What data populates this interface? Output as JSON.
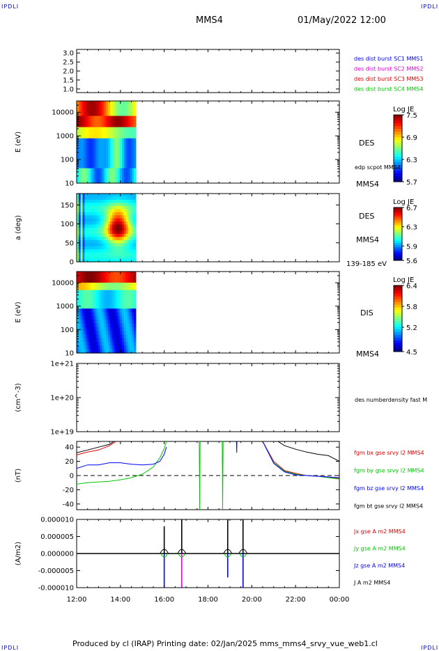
{
  "header": {
    "corner_label": "IPDLI",
    "title": "MMS4",
    "datetime": "01/May/2022 12:00"
  },
  "footer": {
    "text": "Produced by cl (IRAP)   Printing date: 02/Jan/2025   mms_mms4_srvy_vue_web1.cl"
  },
  "x_axis": {
    "ticks": [
      "12:00",
      "14:00",
      "16:00",
      "18:00",
      "20:00",
      "22:00",
      "00:00"
    ],
    "range_hours": [
      12,
      24
    ]
  },
  "chart_data": [
    {
      "type": "scatter",
      "panel": "burst-indicator",
      "ylim": [
        0.8,
        3.2
      ],
      "y_ticks": [
        "3.0",
        "2.5",
        "2.0",
        "1.5",
        "1.0"
      ],
      "legend": [
        {
          "text": "des dist burst SC1 MMS1",
          "color": "#0000ff"
        },
        {
          "text": "des dist burst SC2 MMS2",
          "color": "#e000e0"
        },
        {
          "text": "des dist burst SC3 MMS3",
          "color": "#e00000"
        },
        {
          "text": "des dist burst SC4 MMS4",
          "color": "#00c800"
        }
      ]
    },
    {
      "type": "heatmap",
      "panel": "des-energy-spectrogram",
      "ylabel": "E (eV)",
      "yscale": "log",
      "ylim": [
        10,
        30000
      ],
      "y_ticks": [
        "10000",
        "1000",
        "100",
        "10"
      ],
      "x_data_extent_hours": [
        12,
        14.7
      ],
      "right_labels": [
        "DES",
        "edp scpot MMS4",
        "MMS4"
      ],
      "colorbar": {
        "title": "Log JE",
        "ticks": [
          "7.5",
          "6.9",
          "6.3",
          "5.7"
        ],
        "range": [
          5.7,
          7.5
        ]
      }
    },
    {
      "type": "heatmap",
      "panel": "des-pitch-angle",
      "ylabel": "a (deg)",
      "ylim": [
        0,
        180
      ],
      "y_ticks": [
        "150",
        "100",
        "50",
        "0"
      ],
      "x_data_extent_hours": [
        12,
        14.7
      ],
      "right_labels": [
        "DES",
        "MMS4",
        "139-185 eV"
      ],
      "colorbar": {
        "title": "Log JE",
        "ticks": [
          "6.7",
          "6.3",
          "5.9",
          "5.6"
        ],
        "range": [
          5.6,
          6.7
        ]
      }
    },
    {
      "type": "heatmap",
      "panel": "dis-energy-spectrogram",
      "ylabel": "E (eV)",
      "yscale": "log",
      "ylim": [
        10,
        30000
      ],
      "y_ticks": [
        "10000",
        "1000",
        "100",
        "10"
      ],
      "x_data_extent_hours": [
        12,
        14.7
      ],
      "right_labels": [
        "DIS",
        "MMS4"
      ],
      "colorbar": {
        "title": "Log JE",
        "ticks": [
          "6.4",
          "5.8",
          "5.2",
          "4.5"
        ],
        "range": [
          4.5,
          6.4
        ]
      }
    },
    {
      "type": "line",
      "panel": "number-density",
      "ylabel": "(cm^-3)",
      "yscale": "log",
      "y_ticks": [
        "1e+21",
        "1e+20",
        "1e+19"
      ],
      "legend": [
        {
          "text": "des numberdensity fast M",
          "color": "#000000"
        }
      ],
      "series": []
    },
    {
      "type": "line",
      "panel": "magnetic-field",
      "ylabel": "(nT)",
      "ylim": [
        -48,
        48
      ],
      "y_ticks": [
        "40",
        "20",
        "0",
        "-20",
        "-40"
      ],
      "zero_line": "dashed",
      "legend": [
        {
          "text": "fgm bx gse srvy l2 MMS4",
          "color": "#e00000"
        },
        {
          "text": "fgm by gse srvy l2 MMS4",
          "color": "#00c800"
        },
        {
          "text": "fgm bz gse srvy l2 MMS4",
          "color": "#0000ff"
        },
        {
          "text": "fgm bt gse srvy l2 MMS4",
          "color": "#000000"
        }
      ],
      "series": [
        {
          "name": "fgm bx gse srvy l2 MMS4",
          "color": "#e00000",
          "segments": [
            {
              "x": [
                12.0,
                12.5,
                13.0,
                13.5,
                13.8
              ],
              "y": [
                29,
                33,
                36,
                42,
                48
              ]
            },
            {
              "x": [
                20.5,
                21.0,
                21.5,
                22.0,
                22.5,
                23.0,
                23.5,
                24.0
              ],
              "y": [
                48,
                20,
                7,
                3,
                0,
                -1,
                -2,
                -4
              ]
            }
          ]
        },
        {
          "name": "fgm by gse srvy l2 MMS4",
          "color": "#00c800",
          "segments": [
            {
              "x": [
                12.0,
                12.5,
                13.0,
                13.5,
                14.0,
                14.5,
                15.0,
                15.5,
                15.8,
                16.0,
                16.1
              ],
              "y": [
                -12,
                -10,
                -9,
                -8,
                -6,
                -3,
                2,
                12,
                25,
                38,
                48
              ]
            },
            {
              "x": [
                17.6,
                17.62,
                17.64
              ],
              "y": [
                48,
                -48,
                48
              ]
            },
            {
              "x": [
                18.65,
                18.67,
                18.69
              ],
              "y": [
                48,
                -48,
                48
              ]
            },
            {
              "x": [
                20.5,
                21.0,
                21.5,
                22.0,
                22.5,
                23.0,
                23.5,
                24.0
              ],
              "y": [
                48,
                18,
                6,
                2,
                0,
                -1,
                -3,
                -5
              ]
            }
          ]
        },
        {
          "name": "fgm bz gse srvy l2 MMS4",
          "color": "#0000ff",
          "segments": [
            {
              "x": [
                12.0,
                12.5,
                13.0,
                13.5,
                14.0,
                14.5,
                15.0,
                15.5,
                15.8,
                16.0,
                16.1
              ],
              "y": [
                10,
                15,
                15,
                18,
                18,
                16,
                15,
                16,
                20,
                30,
                40
              ]
            },
            {
              "x": [
                19.3,
                19.31,
                19.32
              ],
              "y": [
                48,
                32,
                48
              ]
            },
            {
              "x": [
                20.5,
                21.0,
                21.5,
                22.0,
                22.5,
                23.0,
                23.5,
                24.0
              ],
              "y": [
                48,
                17,
                5,
                1,
                0,
                -1,
                -2,
                -3
              ]
            }
          ]
        },
        {
          "name": "fgm bt gse srvy l2 MMS4",
          "color": "#000000",
          "segments": [
            {
              "x": [
                12.0,
                12.5,
                13.0,
                13.5,
                13.7
              ],
              "y": [
                32,
                36,
                40,
                44,
                48
              ]
            },
            {
              "x": [
                21.2,
                21.5,
                22.0,
                22.5,
                23.0,
                23.5,
                24.0
              ],
              "y": [
                48,
                42,
                37,
                33,
                30,
                28,
                20
              ]
            }
          ]
        }
      ]
    },
    {
      "type": "line",
      "panel": "current-density",
      "ylabel": "(A/m2)",
      "ylim": [
        -1e-05,
        1e-05
      ],
      "y_ticks": [
        "0.000010",
        "0.000005",
        "0.000000",
        "-0.000005",
        "-0.000010"
      ],
      "legend": [
        {
          "text": "Jx gse A m2 MMS4",
          "color": "#e00000"
        },
        {
          "text": "Jy gse A m2 MMS4",
          "color": "#00c800"
        },
        {
          "text": "Jz gse A m2 MMS4",
          "color": "#0000ff"
        },
        {
          "text": "J A m2 MMS4",
          "color": "#000000"
        }
      ],
      "spikes": [
        {
          "x": 16.0,
          "up": 8e-06,
          "down": -1e-05,
          "color": "#0000ff"
        },
        {
          "x": 16.8,
          "up": 1e-05,
          "down": -1e-05,
          "color": "#e000e0"
        },
        {
          "x": 18.9,
          "up": 1e-05,
          "down": -7e-06,
          "color": "#0000ff"
        },
        {
          "x": 19.6,
          "up": 1e-05,
          "down": -1e-05,
          "color": "#0000ff"
        }
      ]
    }
  ]
}
